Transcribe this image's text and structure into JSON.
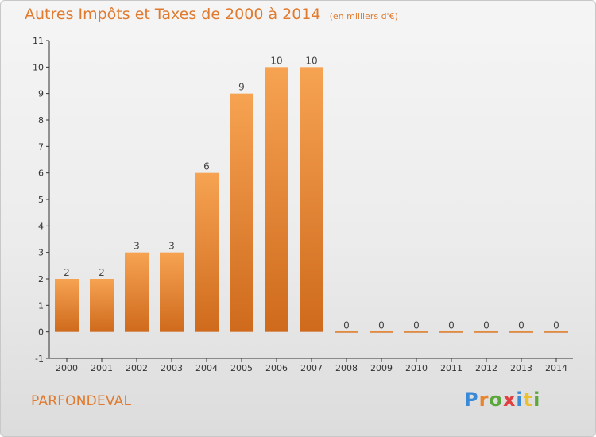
{
  "chart_data": {
    "type": "bar",
    "title": "Autres Impôts et Taxes de 2000 à 2014",
    "unit": "(en milliers d'€)",
    "categories": [
      "2000",
      "2001",
      "2002",
      "2003",
      "2004",
      "2005",
      "2006",
      "2007",
      "2008",
      "2009",
      "2010",
      "2011",
      "2012",
      "2013",
      "2014"
    ],
    "values": [
      2,
      2,
      3,
      3,
      6,
      9,
      10,
      10,
      0,
      0,
      0,
      0,
      0,
      0,
      0
    ],
    "data_labels": [
      "2",
      "2",
      "3",
      "3",
      "6",
      "9",
      "10",
      "10",
      "0",
      "0",
      "0",
      "0",
      "0",
      "0",
      "0"
    ],
    "y_ticks": [
      "-1",
      "0",
      "1",
      "2",
      "3",
      "4",
      "5",
      "6",
      "7",
      "8",
      "9",
      "10",
      "11"
    ],
    "ylim": [
      -1,
      11
    ],
    "grid": false,
    "bar_color": "#e8832e"
  },
  "footer": {
    "commune": "PARFONDEVAL",
    "logo_text": "Proxiti",
    "logo_colors": [
      "#3a8ad8",
      "#e8832e",
      "#5aa83a",
      "#e04040",
      "#3a8ad8",
      "#e8c030",
      "#5aa83a"
    ]
  }
}
